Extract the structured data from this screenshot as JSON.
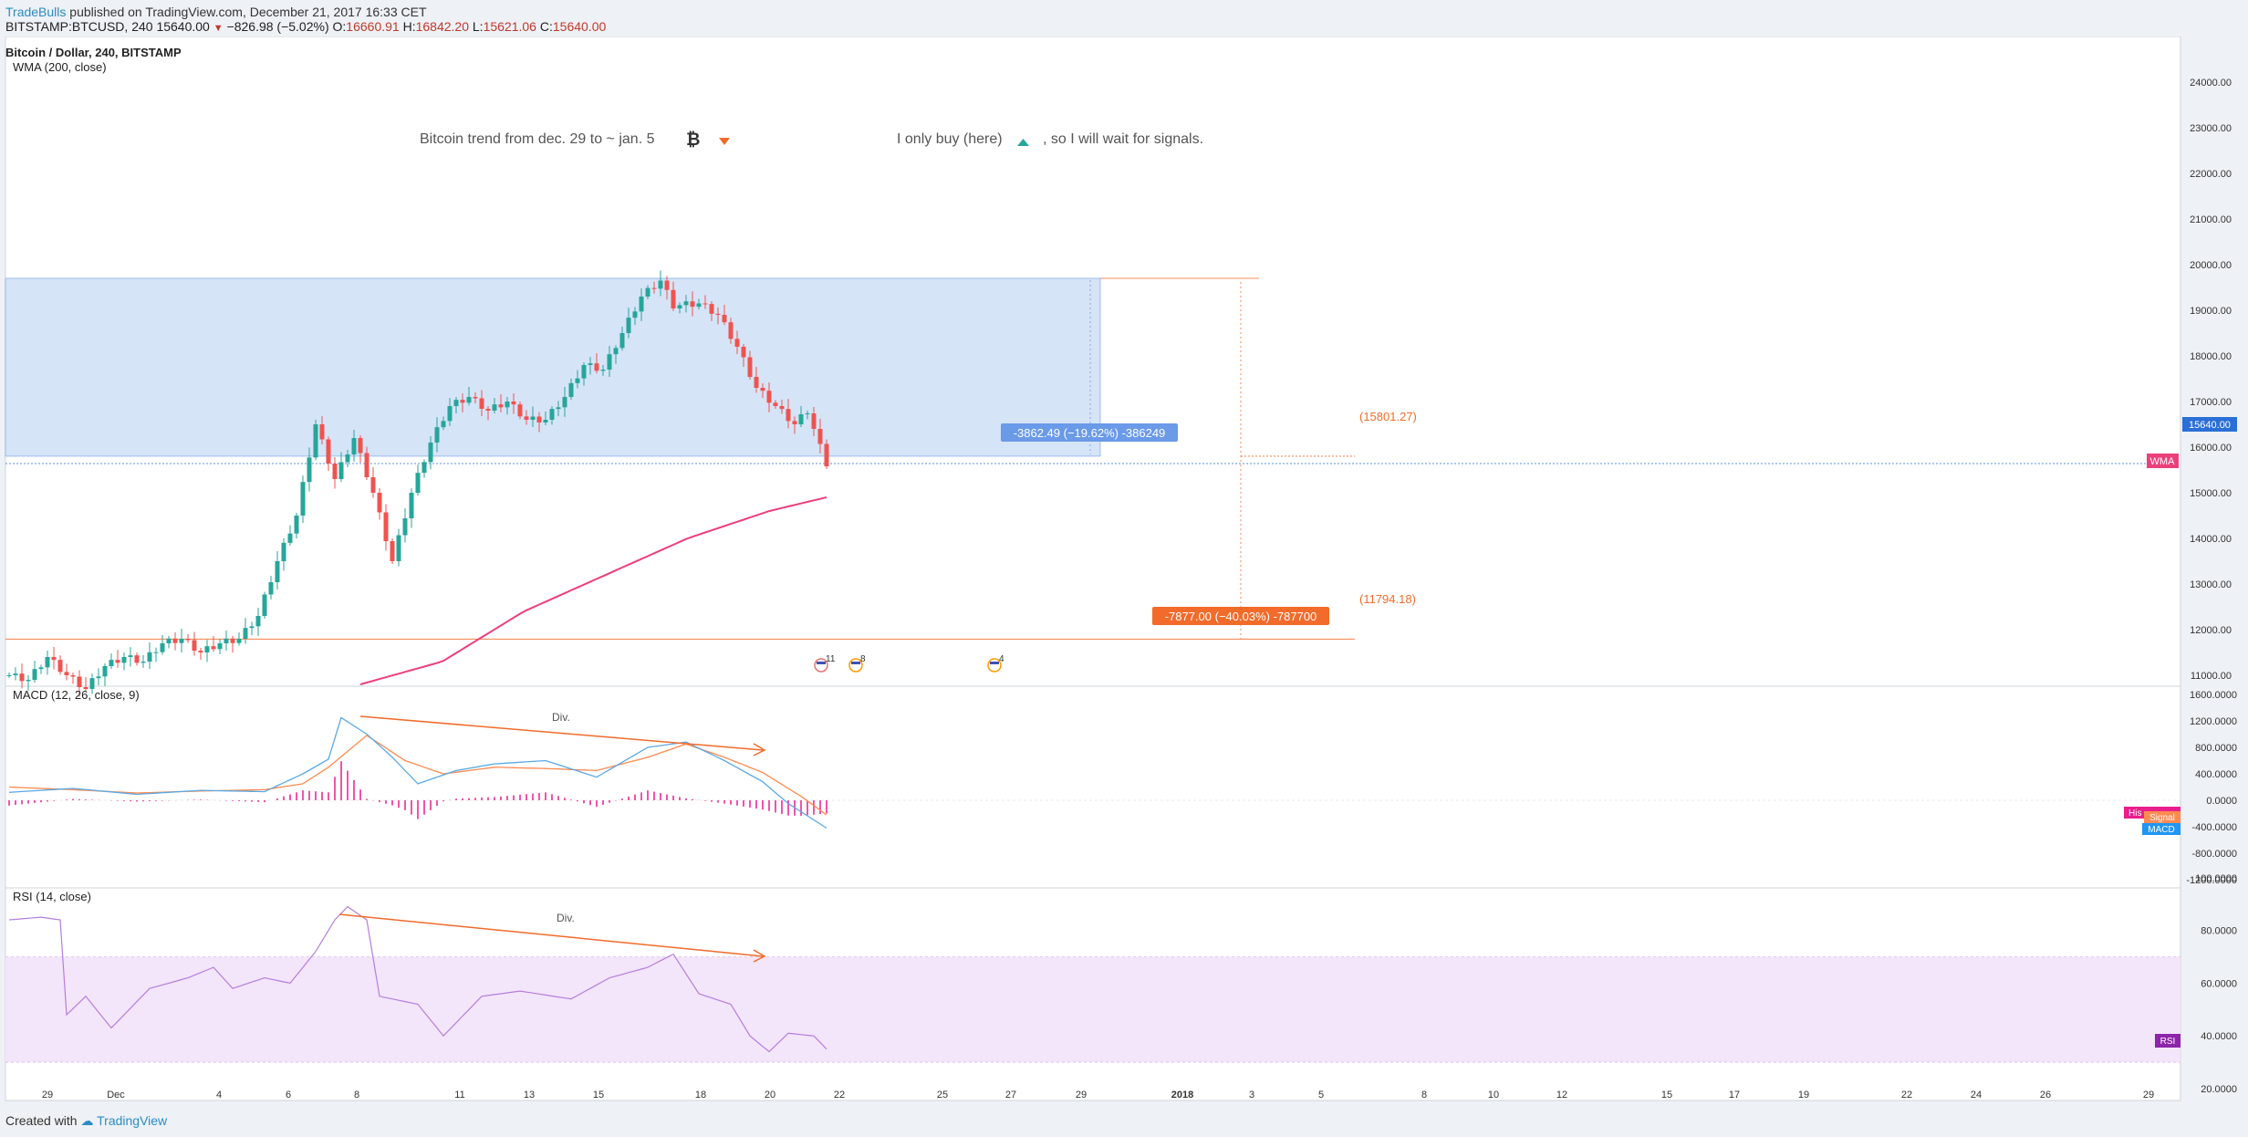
{
  "header": {
    "brand": "TradeBulls",
    "published_text": "published on TradingView.com, December 21, 2017 16:33 CET",
    "symbol": "BITSTAMP:BTCUSD, 240",
    "last": "15640.00",
    "change": "−826.98 (−5.02%)",
    "o_label": "O:",
    "o": "16660.91",
    "h_label": "H:",
    "h": "16842.20",
    "l_label": "L:",
    "l": "15621.06",
    "c_label": "C:",
    "c": "15640.00"
  },
  "footer": {
    "created_with": "Created with",
    "brand": "TradingView"
  },
  "colors": {
    "up": "#26a69a",
    "down": "#ef5350",
    "wma": "#ec407a",
    "macd_line": "#5aa9e6",
    "signal_line": "#ff8a50",
    "histogram": "#e91e8c",
    "rsi_line": "#b57edc",
    "rsi_band": "#f3e5fa",
    "zone": "#d6e4f7",
    "orange": "#f26b2a",
    "badge_blue": "#6a9ae8"
  },
  "chart_data": [
    {
      "type": "candlestick",
      "title": "Bitcoin / Dollar, 240, BITSTAMP",
      "indicator_label": "WMA (200, close)",
      "price_axis": {
        "ticks": [
          "24000.00",
          "23000.00",
          "22000.00",
          "21000.00",
          "20000.00",
          "19000.00",
          "18000.00",
          "17000.00",
          "16000.00",
          "15000.00",
          "14000.00",
          "13000.00",
          "12000.00",
          "11000.00"
        ],
        "current_price_label": "15640.00",
        "wma_label": "WMA"
      },
      "time_axis": {
        "labels": [
          "29",
          "Dec",
          "4",
          "6",
          "8",
          "11",
          "13",
          "15",
          "18",
          "20",
          "22",
          "25",
          "27",
          "29",
          "2018",
          "3",
          "5",
          "8",
          "10",
          "12",
          "15",
          "17",
          "19",
          "22",
          "24",
          "26",
          "29"
        ]
      },
      "anchors": [
        [
          0,
          11000
        ],
        [
          3,
          10900
        ],
        [
          6,
          11400
        ],
        [
          9,
          11000
        ],
        [
          12,
          10700
        ],
        [
          15,
          11200
        ],
        [
          18,
          11400
        ],
        [
          21,
          11300
        ],
        [
          24,
          11700
        ],
        [
          27,
          11800
        ],
        [
          30,
          11500
        ],
        [
          33,
          11700
        ],
        [
          36,
          11800
        ],
        [
          39,
          12300
        ],
        [
          42,
          13500
        ],
        [
          45,
          14500
        ],
        [
          48,
          16500
        ],
        [
          51,
          15300
        ],
        [
          54,
          16200
        ],
        [
          57,
          15000
        ],
        [
          60,
          13500
        ],
        [
          63,
          15000
        ],
        [
          66,
          16100
        ],
        [
          69,
          16900
        ],
        [
          72,
          17100
        ],
        [
          75,
          16800
        ],
        [
          78,
          17000
        ],
        [
          81,
          16600
        ],
        [
          84,
          16600
        ],
        [
          87,
          17100
        ],
        [
          90,
          17800
        ],
        [
          93,
          17700
        ],
        [
          96,
          18500
        ],
        [
          99,
          19300
        ],
        [
          102,
          19650
        ],
        [
          104,
          19100
        ],
        [
          108,
          19150
        ],
        [
          111,
          18900
        ],
        [
          114,
          18200
        ],
        [
          117,
          17300
        ],
        [
          120,
          16900
        ],
        [
          123,
          16500
        ],
        [
          125,
          16800
        ],
        [
          127,
          16000
        ],
        [
          128,
          15640
        ]
      ],
      "wma": [
        [
          0,
          10800
        ],
        [
          20,
          11300
        ],
        [
          40,
          12400
        ],
        [
          60,
          13200
        ],
        [
          80,
          14000
        ],
        [
          100,
          14600
        ],
        [
          114,
          14900
        ]
      ],
      "drawings": {
        "annotation_left": "Bitcoin trend from dec. 29 to ~ jan. 5",
        "annotation_right_1": "I only buy (here)",
        "annotation_right_2": ", so I will wait for signals.",
        "zone": {
          "top": 19700,
          "bottom": 15801.27
        },
        "zone_badge": "-3862.49 (−19.62%) -386249",
        "level_high_label": "(15801.27)",
        "level_low": 11794.18,
        "level_low_label": "(11794.18)",
        "target_badge": "-7877.00 (−40.03%) -787700",
        "event_counts": [
          "11",
          "8",
          "4"
        ]
      }
    },
    {
      "type": "line",
      "title": "MACD (12, 26, close, 9)",
      "y_axis_ticks": [
        "1600.0000",
        "1200.0000",
        "800.0000",
        "400.0000",
        "0.0000",
        "-400.0000",
        "-800.0000",
        "-1200.0000"
      ],
      "legend": [
        "Histogram",
        "Signal",
        "MACD"
      ],
      "legend_hist_abbr": "His",
      "annotation": "Div.",
      "macd": [
        [
          0,
          120
        ],
        [
          10,
          180
        ],
        [
          20,
          90
        ],
        [
          30,
          150
        ],
        [
          40,
          130
        ],
        [
          46,
          400
        ],
        [
          50,
          620
        ],
        [
          52,
          1250
        ],
        [
          56,
          1000
        ],
        [
          60,
          650
        ],
        [
          64,
          250
        ],
        [
          70,
          450
        ],
        [
          76,
          550
        ],
        [
          84,
          600
        ],
        [
          92,
          350
        ],
        [
          100,
          800
        ],
        [
          106,
          880
        ],
        [
          112,
          600
        ],
        [
          118,
          280
        ],
        [
          122,
          -50
        ],
        [
          128,
          -420
        ]
      ],
      "signal": [
        [
          0,
          200
        ],
        [
          10,
          160
        ],
        [
          20,
          110
        ],
        [
          30,
          140
        ],
        [
          40,
          160
        ],
        [
          46,
          250
        ],
        [
          50,
          500
        ],
        [
          56,
          980
        ],
        [
          62,
          600
        ],
        [
          68,
          400
        ],
        [
          76,
          500
        ],
        [
          84,
          480
        ],
        [
          92,
          450
        ],
        [
          100,
          650
        ],
        [
          106,
          850
        ],
        [
          112,
          650
        ],
        [
          118,
          420
        ],
        [
          124,
          60
        ],
        [
          128,
          -220
        ]
      ]
    },
    {
      "type": "line",
      "title": "RSI (14, close)",
      "y_axis_ticks": [
        "100.0000",
        "80.0000",
        "60.0000",
        "40.0000",
        "20.0000"
      ],
      "band": [
        30,
        70
      ],
      "legend": [
        "RSI"
      ],
      "annotation": "Div.",
      "values": [
        [
          0,
          84
        ],
        [
          5,
          85
        ],
        [
          8,
          84
        ],
        [
          9,
          48
        ],
        [
          12,
          55
        ],
        [
          16,
          43
        ],
        [
          22,
          58
        ],
        [
          28,
          62
        ],
        [
          32,
          66
        ],
        [
          35,
          58
        ],
        [
          40,
          62
        ],
        [
          44,
          60
        ],
        [
          48,
          72
        ],
        [
          51,
          84
        ],
        [
          53,
          89
        ],
        [
          56,
          84
        ],
        [
          58,
          55
        ],
        [
          64,
          52
        ],
        [
          68,
          40
        ],
        [
          74,
          55
        ],
        [
          80,
          57
        ],
        [
          88,
          54
        ],
        [
          94,
          62
        ],
        [
          100,
          66
        ],
        [
          104,
          71
        ],
        [
          108,
          56
        ],
        [
          113,
          52
        ],
        [
          116,
          40
        ],
        [
          119,
          34
        ],
        [
          122,
          41
        ],
        [
          126,
          40
        ],
        [
          128,
          35
        ]
      ]
    }
  ]
}
